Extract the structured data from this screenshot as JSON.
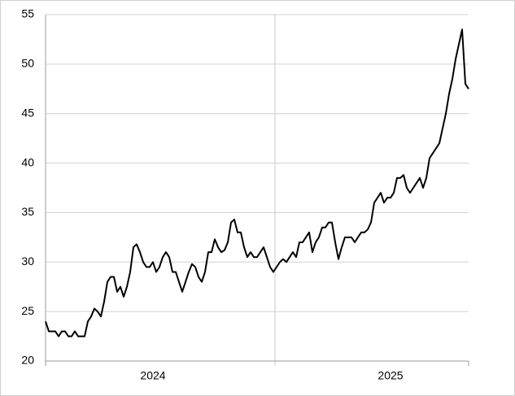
{
  "chart_data": {
    "type": "line",
    "categories": [
      null,
      null,
      null,
      null,
      null,
      null,
      null,
      null,
      null,
      null,
      null,
      null,
      null,
      null,
      null,
      null,
      null,
      null,
      null,
      null,
      null,
      null,
      null,
      null,
      null,
      null,
      null,
      null,
      null,
      null,
      null,
      null,
      null,
      "2024",
      null,
      null,
      null,
      null,
      null,
      null,
      null,
      null,
      null,
      null,
      null,
      null,
      null,
      null,
      null,
      null,
      null,
      null,
      null,
      null,
      null,
      null,
      null,
      null,
      null,
      null,
      null,
      null,
      null,
      null,
      null,
      null,
      null,
      null,
      null,
      null,
      null,
      null,
      null,
      null,
      null,
      null,
      null,
      null,
      null,
      null,
      null,
      null,
      null,
      null,
      null,
      null,
      null,
      null,
      null,
      null,
      null,
      null,
      null,
      null,
      null,
      null,
      null,
      null,
      null,
      null,
      null,
      null,
      null,
      null,
      null,
      null,
      "2025",
      null,
      null,
      null,
      null,
      null,
      null,
      null,
      null,
      null,
      null,
      null,
      null,
      null,
      null,
      null,
      null,
      null,
      null,
      null,
      null,
      null,
      null,
      null,
      null
    ],
    "values": [
      24,
      23,
      23,
      23,
      22.5,
      23,
      23,
      22.5,
      22.5,
      23,
      22.5,
      22.5,
      22.5,
      24,
      24.5,
      25.3,
      25,
      24.5,
      26,
      28,
      28.5,
      28.5,
      27,
      27.5,
      26.5,
      27.5,
      29,
      31.5,
      31.8,
      31,
      30,
      29.5,
      29.5,
      30,
      29,
      29.5,
      30.5,
      31,
      30.5,
      29,
      29,
      28,
      27,
      28,
      29,
      29.8,
      29.5,
      28.5,
      28,
      29,
      31,
      31,
      32.3,
      31.5,
      31,
      31.2,
      32,
      34,
      34.3,
      33,
      33,
      31.5,
      30.5,
      31,
      30.5,
      30.5,
      31,
      31.5,
      30.5,
      29.5,
      29,
      29.5,
      30,
      30.3,
      30,
      30.5,
      31,
      30.5,
      32,
      32,
      32.5,
      33,
      31,
      32,
      32.5,
      33.5,
      33.5,
      34,
      34,
      32,
      30.3,
      31.5,
      32.5,
      32.5,
      32.5,
      32,
      32.5,
      33,
      33,
      33.3,
      34,
      36,
      36.5,
      37,
      36,
      36.5,
      36.5,
      37,
      38.5,
      38.5,
      38.8,
      37.5,
      37,
      37.5,
      38,
      38.5,
      37.5,
      38.5,
      40.5,
      41,
      41.5,
      42,
      43.5,
      45,
      47,
      48.5,
      50.5,
      52,
      53.5,
      48,
      47.5
    ],
    "color": "#000000",
    "ylim": [
      20,
      55
    ],
    "yticks": [
      20,
      25,
      30,
      35,
      40,
      45,
      50,
      55
    ],
    "grid": true
  }
}
